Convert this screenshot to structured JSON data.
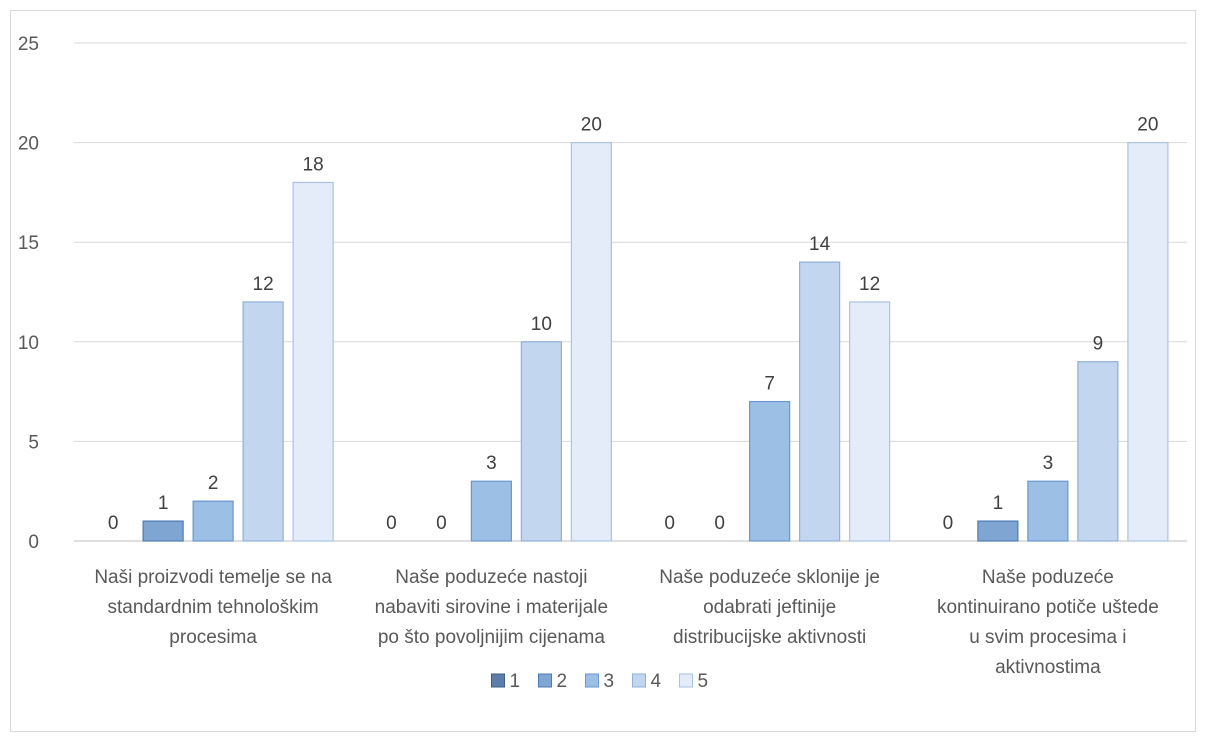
{
  "chart_data": {
    "type": "bar",
    "categories": [
      [
        "Naši proizvodi temelje se na",
        "standardnim tehnološkim",
        "procesima"
      ],
      [
        "Naše poduzeće nastoji",
        "nabaviti sirovine i materijale",
        "po što povoljnijim cijenama"
      ],
      [
        "Naše poduzeće sklonije je",
        "odabrati jeftinije",
        "distribucijske aktivnosti"
      ],
      [
        "Naše poduzeće",
        "kontinuirano potiče uštede",
        "u svim procesima  i",
        "aktivnostima"
      ]
    ],
    "series": [
      {
        "name": "1",
        "values": [
          0,
          0,
          0,
          0
        ],
        "color": "#5b7fa8",
        "stroke": "#3e5f86"
      },
      {
        "name": "2",
        "values": [
          1,
          0,
          0,
          1
        ],
        "color": "#7fa6d3",
        "stroke": "#4f7bb0"
      },
      {
        "name": "3",
        "values": [
          2,
          3,
          7,
          3
        ],
        "color": "#9cbfe6",
        "stroke": "#6a97cc"
      },
      {
        "name": "4",
        "values": [
          12,
          10,
          14,
          9
        ],
        "color": "#c3d6ef",
        "stroke": "#8fb0d8"
      },
      {
        "name": "5",
        "values": [
          18,
          20,
          12,
          20
        ],
        "color": "#e3ecf8",
        "stroke": "#aac3e3"
      }
    ],
    "ylim": [
      0,
      25
    ],
    "yticks": [
      0,
      5,
      10,
      15,
      20,
      25
    ],
    "grid": true,
    "legend": "bottom",
    "title": "",
    "xlabel": "",
    "ylabel": ""
  }
}
